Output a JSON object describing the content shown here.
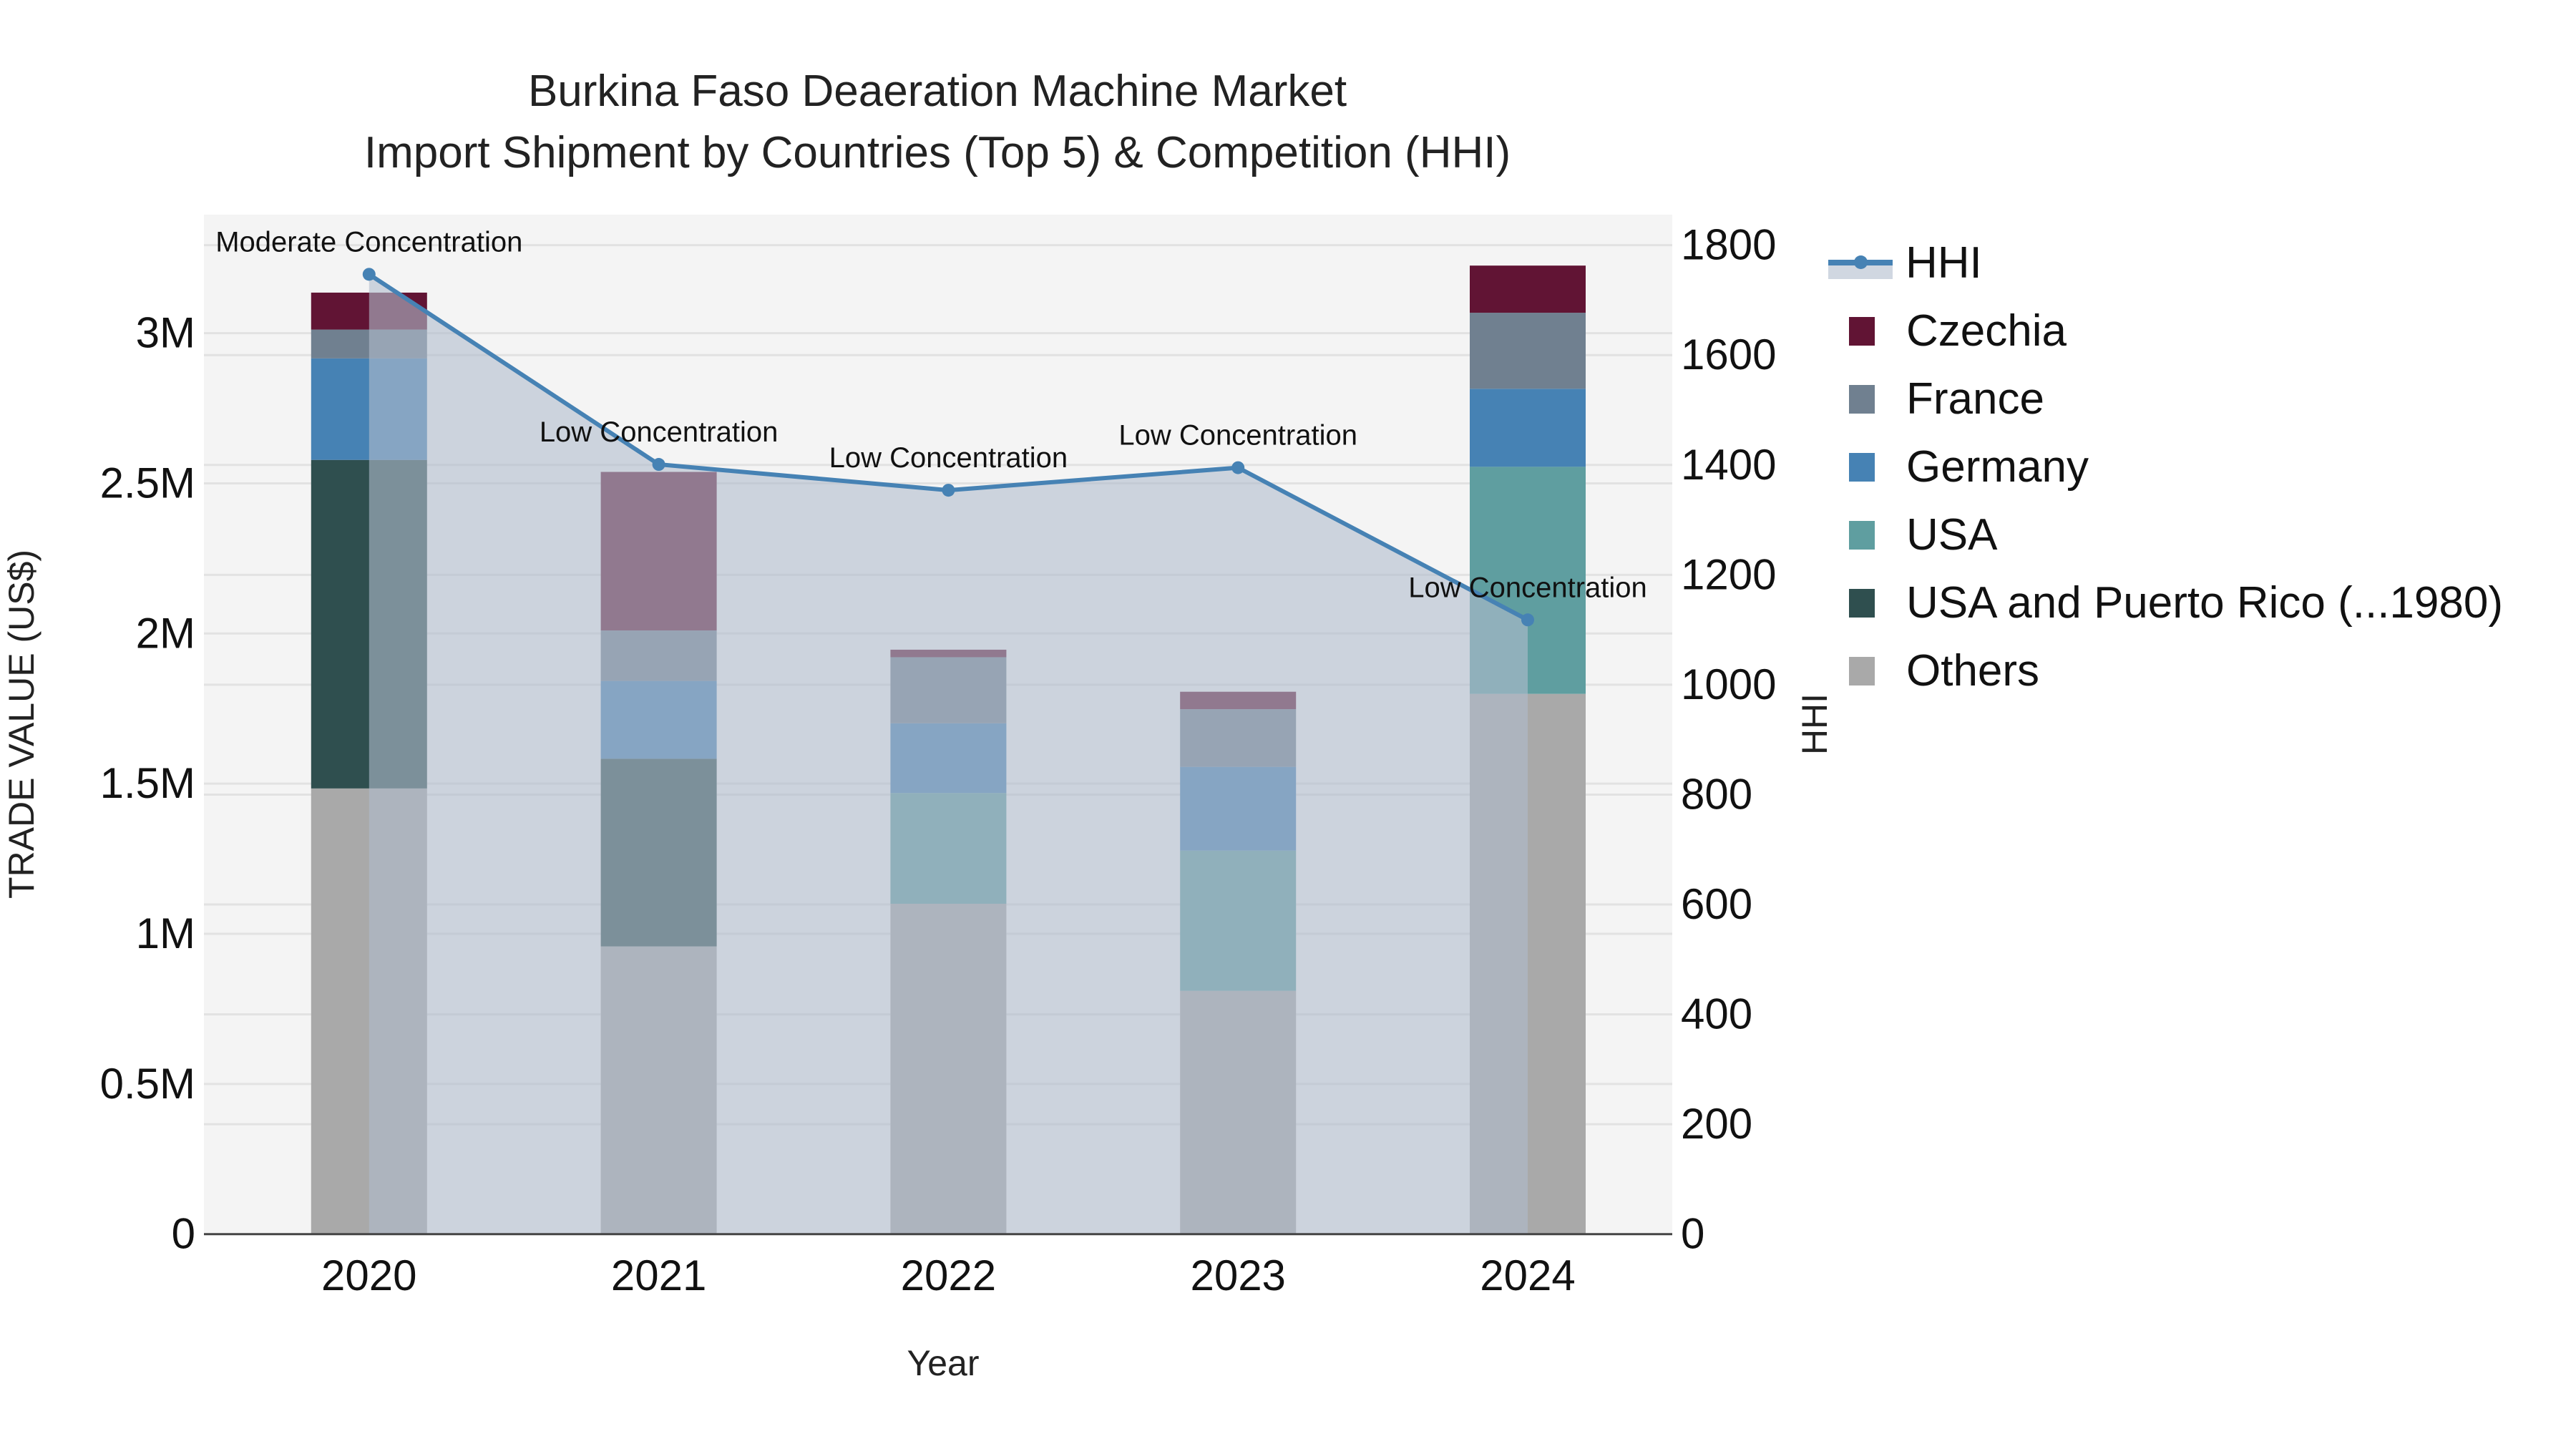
{
  "title": {
    "line1": "Burkina Faso Deaeration Machine Market",
    "line2": "Import Shipment by Countries (Top 5) & Competition (HHI)"
  },
  "axes": {
    "x_title": "Year",
    "y_left_title": "TRADE VALUE (US$)",
    "y_right_title": "HHI",
    "y_left_ticks": [
      "0",
      "0.5M",
      "1M",
      "1.5M",
      "2M",
      "2.5M",
      "3M"
    ],
    "y_right_ticks": [
      "0",
      "200",
      "400",
      "600",
      "800",
      "1000",
      "1200",
      "1400",
      "1600",
      "1800"
    ]
  },
  "legend": [
    {
      "name": "HHI",
      "type": "line",
      "color": "#4682B4"
    },
    {
      "name": "Czechia",
      "color": "#611434"
    },
    {
      "name": "France",
      "color": "#708090"
    },
    {
      "name": "Germany",
      "color": "#4682B4"
    },
    {
      "name": "USA",
      "color": "#5F9EA0"
    },
    {
      "name": "USA and Puerto Rico (...1980)",
      "color": "#2F4F4F"
    },
    {
      "name": "Others",
      "color": "#A9A9A9"
    }
  ],
  "chart_data": {
    "type": "bar",
    "stacked": true,
    "title": "Burkina Faso Deaeration Machine Market — Import Shipment by Countries (Top 5) & Competition (HHI)",
    "xlabel": "Year",
    "ylabel": "TRADE VALUE (US$)",
    "y2label": "HHI",
    "categories": [
      "2020",
      "2021",
      "2022",
      "2023",
      "2024"
    ],
    "ylim": [
      0,
      3394000
    ],
    "y2lim": [
      0,
      1855
    ],
    "series": [
      {
        "name": "Others",
        "color": "#A9A9A9",
        "values": [
          1484000,
          958000,
          1100000,
          810000,
          1799000
        ]
      },
      {
        "name": "USA and Puerto Rico (...1980)",
        "color": "#2F4F4F",
        "values": [
          1094000,
          625000,
          0,
          0,
          0
        ]
      },
      {
        "name": "USA",
        "color": "#5F9EA0",
        "values": [
          0,
          0,
          369000,
          467000,
          756000
        ]
      },
      {
        "name": "Germany",
        "color": "#4682B4",
        "values": [
          338000,
          259000,
          232000,
          279000,
          260000
        ]
      },
      {
        "name": "France",
        "color": "#708090",
        "values": [
          96000,
          168000,
          220000,
          192000,
          253000
        ]
      },
      {
        "name": "Czechia",
        "color": "#611434",
        "values": [
          123000,
          528000,
          25000,
          58000,
          157000
        ]
      }
    ],
    "line_series": {
      "name": "HHI",
      "axis": "right",
      "color": "#4682B4",
      "values": [
        1747,
        1401,
        1354,
        1395,
        1118
      ],
      "annotations": [
        "Moderate Concentration",
        "Low Concentration",
        "Low Concentration",
        "Low Concentration",
        "Low Concentration"
      ]
    },
    "grid": true,
    "legend_position": "right"
  }
}
